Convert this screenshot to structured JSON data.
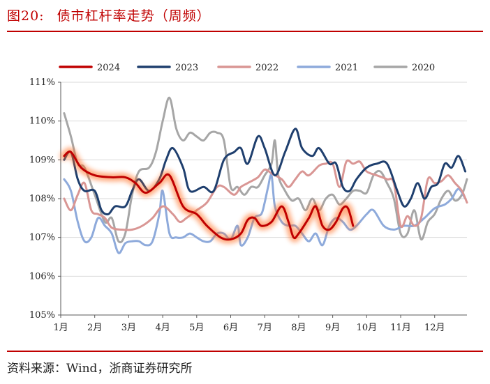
{
  "header": {
    "figure_number": "图20:",
    "figure_title": "债市杠杆率走势（周频）"
  },
  "footer": {
    "source": "资料来源：Wind，浙商证券研究所"
  },
  "chart_data": {
    "type": "line",
    "title": "债市杠杆率走势（周频）",
    "xlabel": "",
    "ylabel": "",
    "x_unit": "month",
    "xlim": [
      1,
      12.95
    ],
    "ylim": [
      105,
      111
    ],
    "x_ticks": [
      1,
      2,
      3,
      4,
      5,
      6,
      7,
      8,
      9,
      10,
      11,
      12
    ],
    "x_tick_labels": [
      "1月",
      "2月",
      "3月",
      "4月",
      "5月",
      "6月",
      "7月",
      "8月",
      "9月",
      "10月",
      "11月",
      "12月"
    ],
    "y_ticks": [
      105,
      106,
      107,
      108,
      109,
      110,
      111
    ],
    "y_tick_labels": [
      "105%",
      "106%",
      "107%",
      "108%",
      "109%",
      "110%",
      "111%"
    ],
    "grid": "horizontal",
    "legend_position": "top",
    "series": [
      {
        "name": "2024",
        "color": "#c00000",
        "highlight": true,
        "points": [
          [
            1.1,
            109.1
          ],
          [
            1.3,
            109.2
          ],
          [
            1.6,
            108.8
          ],
          [
            2.0,
            108.6
          ],
          [
            2.5,
            108.55
          ],
          [
            2.9,
            108.55
          ],
          [
            3.2,
            108.4
          ],
          [
            3.5,
            108.15
          ],
          [
            3.9,
            108.4
          ],
          [
            4.2,
            108.6
          ],
          [
            4.6,
            107.8
          ],
          [
            5.0,
            107.6
          ],
          [
            5.3,
            107.3
          ],
          [
            5.7,
            107.0
          ],
          [
            6.0,
            106.95
          ],
          [
            6.3,
            107.1
          ],
          [
            6.5,
            107.45
          ],
          [
            6.7,
            107.5
          ],
          [
            6.9,
            107.3
          ],
          [
            7.2,
            107.4
          ],
          [
            7.5,
            107.8
          ],
          [
            7.7,
            107.4
          ],
          [
            7.85,
            107.0
          ],
          [
            8.0,
            107.1
          ],
          [
            8.3,
            107.5
          ],
          [
            8.5,
            107.8
          ],
          [
            8.7,
            107.3
          ],
          [
            8.9,
            107.2
          ],
          [
            9.1,
            107.4
          ],
          [
            9.3,
            107.75
          ],
          [
            9.45,
            107.75
          ],
          [
            9.6,
            107.3
          ]
        ]
      },
      {
        "name": "2023",
        "color": "#1f3f6e",
        "highlight": false,
        "points": [
          [
            1.1,
            109.0
          ],
          [
            1.3,
            109.2
          ],
          [
            1.5,
            108.5
          ],
          [
            1.7,
            108.2
          ],
          [
            2.0,
            108.2
          ],
          [
            2.2,
            107.7
          ],
          [
            2.4,
            107.6
          ],
          [
            2.6,
            107.8
          ],
          [
            2.9,
            107.8
          ],
          [
            3.1,
            108.2
          ],
          [
            3.3,
            108.5
          ],
          [
            3.6,
            108.2
          ],
          [
            3.9,
            108.5
          ],
          [
            4.1,
            109.0
          ],
          [
            4.3,
            109.3
          ],
          [
            4.6,
            108.8
          ],
          [
            4.8,
            108.2
          ],
          [
            5.2,
            108.3
          ],
          [
            5.5,
            108.2
          ],
          [
            5.8,
            109.0
          ],
          [
            6.1,
            109.2
          ],
          [
            6.3,
            109.3
          ],
          [
            6.5,
            108.9
          ],
          [
            6.8,
            109.6
          ],
          [
            7.0,
            109.3
          ],
          [
            7.3,
            108.6
          ],
          [
            7.6,
            109.2
          ],
          [
            7.9,
            109.8
          ],
          [
            8.1,
            109.3
          ],
          [
            8.4,
            109.1
          ],
          [
            8.6,
            109.3
          ],
          [
            8.9,
            108.9
          ],
          [
            9.1,
            108.9
          ],
          [
            9.3,
            108.3
          ],
          [
            9.5,
            108.2
          ],
          [
            9.7,
            108.5
          ],
          [
            10.0,
            108.8
          ],
          [
            10.3,
            108.9
          ],
          [
            10.6,
            108.9
          ],
          [
            10.9,
            108.2
          ],
          [
            11.1,
            107.8
          ],
          [
            11.3,
            108.0
          ],
          [
            11.5,
            108.4
          ],
          [
            11.7,
            108.0
          ],
          [
            11.9,
            108.3
          ],
          [
            12.1,
            108.4
          ],
          [
            12.3,
            108.9
          ],
          [
            12.5,
            108.8
          ],
          [
            12.7,
            109.1
          ],
          [
            12.9,
            108.7
          ]
        ]
      },
      {
        "name": "2022",
        "color": "#d99694",
        "highlight": false,
        "points": [
          [
            1.1,
            108.0
          ],
          [
            1.3,
            107.7
          ],
          [
            1.5,
            108.1
          ],
          [
            1.7,
            108.4
          ],
          [
            1.9,
            107.7
          ],
          [
            2.1,
            107.6
          ],
          [
            2.3,
            107.5
          ],
          [
            2.5,
            107.25
          ],
          [
            2.8,
            107.2
          ],
          [
            3.1,
            107.2
          ],
          [
            3.4,
            107.3
          ],
          [
            3.7,
            107.5
          ],
          [
            4.0,
            107.8
          ],
          [
            4.3,
            107.6
          ],
          [
            4.5,
            107.4
          ],
          [
            4.7,
            107.5
          ],
          [
            5.0,
            107.7
          ],
          [
            5.3,
            107.9
          ],
          [
            5.6,
            108.3
          ],
          [
            5.8,
            108.3
          ],
          [
            6.1,
            108.1
          ],
          [
            6.3,
            108.3
          ],
          [
            6.5,
            108.4
          ],
          [
            6.8,
            108.55
          ],
          [
            7.0,
            108.75
          ],
          [
            7.2,
            108.65
          ],
          [
            7.5,
            108.5
          ],
          [
            7.7,
            108.3
          ],
          [
            7.9,
            108.5
          ],
          [
            8.1,
            108.7
          ],
          [
            8.3,
            108.6
          ],
          [
            8.6,
            108.85
          ],
          [
            8.8,
            108.9
          ],
          [
            9.0,
            108.9
          ],
          [
            9.2,
            108.3
          ],
          [
            9.4,
            108.95
          ],
          [
            9.6,
            108.9
          ],
          [
            9.8,
            108.95
          ],
          [
            10.0,
            108.7
          ],
          [
            10.3,
            108.6
          ],
          [
            10.6,
            108.5
          ],
          [
            10.8,
            108.4
          ],
          [
            11.0,
            107.3
          ],
          [
            11.2,
            107.55
          ],
          [
            11.4,
            107.3
          ],
          [
            11.6,
            107.5
          ],
          [
            11.8,
            108.5
          ],
          [
            12.0,
            108.4
          ],
          [
            12.2,
            108.45
          ],
          [
            12.4,
            108.6
          ],
          [
            12.6,
            108.4
          ],
          [
            12.8,
            108.2
          ],
          [
            12.95,
            107.9
          ]
        ]
      },
      {
        "name": "2021",
        "color": "#8eaadb",
        "highlight": false,
        "points": [
          [
            1.1,
            108.5
          ],
          [
            1.3,
            108.2
          ],
          [
            1.5,
            107.4
          ],
          [
            1.7,
            106.9
          ],
          [
            1.9,
            107.0
          ],
          [
            2.1,
            107.5
          ],
          [
            2.3,
            107.3
          ],
          [
            2.5,
            107.1
          ],
          [
            2.7,
            106.6
          ],
          [
            2.9,
            106.85
          ],
          [
            3.1,
            106.9
          ],
          [
            3.3,
            106.9
          ],
          [
            3.5,
            106.8
          ],
          [
            3.7,
            106.9
          ],
          [
            3.9,
            107.6
          ],
          [
            4.0,
            108.2
          ],
          [
            4.2,
            107.1
          ],
          [
            4.4,
            107.0
          ],
          [
            4.6,
            107.0
          ],
          [
            4.8,
            107.1
          ],
          [
            5.0,
            107.0
          ],
          [
            5.2,
            106.9
          ],
          [
            5.4,
            106.9
          ],
          [
            5.6,
            107.1
          ],
          [
            5.8,
            107.1
          ],
          [
            6.0,
            106.95
          ],
          [
            6.2,
            107.3
          ],
          [
            6.3,
            106.8
          ],
          [
            6.5,
            107.0
          ],
          [
            6.7,
            107.5
          ],
          [
            6.9,
            107.6
          ],
          [
            7.0,
            107.9
          ],
          [
            7.1,
            108.3
          ],
          [
            7.2,
            108.6
          ],
          [
            7.3,
            107.8
          ],
          [
            7.5,
            107.4
          ],
          [
            7.7,
            107.3
          ],
          [
            7.9,
            107.3
          ],
          [
            8.1,
            107.1
          ],
          [
            8.3,
            106.9
          ],
          [
            8.5,
            107.1
          ],
          [
            8.7,
            106.8
          ],
          [
            8.9,
            107.3
          ],
          [
            9.1,
            107.5
          ],
          [
            9.3,
            107.4
          ],
          [
            9.5,
            107.2
          ],
          [
            9.7,
            107.3
          ],
          [
            10.0,
            107.6
          ],
          [
            10.2,
            107.7
          ],
          [
            10.5,
            107.3
          ],
          [
            10.8,
            107.2
          ],
          [
            11.1,
            107.3
          ],
          [
            11.4,
            107.3
          ],
          [
            11.7,
            107.5
          ],
          [
            12.0,
            107.75
          ],
          [
            12.3,
            107.85
          ],
          [
            12.5,
            108.0
          ],
          [
            12.7,
            108.25
          ],
          [
            12.9,
            108.0
          ]
        ]
      },
      {
        "name": "2020",
        "color": "#a6a6a6",
        "highlight": false,
        "points": [
          [
            1.1,
            110.2
          ],
          [
            1.3,
            109.6
          ],
          [
            1.5,
            108.9
          ],
          [
            1.7,
            108.8
          ],
          [
            2.0,
            108.1
          ],
          [
            2.3,
            107.4
          ],
          [
            2.5,
            107.5
          ],
          [
            2.7,
            106.9
          ],
          [
            2.9,
            107.1
          ],
          [
            3.1,
            108.1
          ],
          [
            3.3,
            108.7
          ],
          [
            3.6,
            108.8
          ],
          [
            3.8,
            109.2
          ],
          [
            4.0,
            110.0
          ],
          [
            4.2,
            110.6
          ],
          [
            4.4,
            109.8
          ],
          [
            4.6,
            109.5
          ],
          [
            4.8,
            109.7
          ],
          [
            5.0,
            109.6
          ],
          [
            5.2,
            109.5
          ],
          [
            5.4,
            109.7
          ],
          [
            5.6,
            109.7
          ],
          [
            5.8,
            109.5
          ],
          [
            6.0,
            108.3
          ],
          [
            6.2,
            108.3
          ],
          [
            6.4,
            108.1
          ],
          [
            6.6,
            108.3
          ],
          [
            6.8,
            108.3
          ],
          [
            7.0,
            108.6
          ],
          [
            7.2,
            108.9
          ],
          [
            7.3,
            109.5
          ],
          [
            7.4,
            108.6
          ],
          [
            7.6,
            108.2
          ],
          [
            7.8,
            107.95
          ],
          [
            8.0,
            108.0
          ],
          [
            8.2,
            107.7
          ],
          [
            8.4,
            108.0
          ],
          [
            8.6,
            107.7
          ],
          [
            8.8,
            108.0
          ],
          [
            9.0,
            108.1
          ],
          [
            9.2,
            107.85
          ],
          [
            9.4,
            108.0
          ],
          [
            9.6,
            108.2
          ],
          [
            9.8,
            108.2
          ],
          [
            10.0,
            108.15
          ],
          [
            10.2,
            108.6
          ],
          [
            10.4,
            108.7
          ],
          [
            10.6,
            108.4
          ],
          [
            10.8,
            108.0
          ],
          [
            11.0,
            107.1
          ],
          [
            11.2,
            107.1
          ],
          [
            11.4,
            107.7
          ],
          [
            11.6,
            106.95
          ],
          [
            11.8,
            107.4
          ],
          [
            12.0,
            107.6
          ],
          [
            12.2,
            108.0
          ],
          [
            12.4,
            108.2
          ],
          [
            12.6,
            107.95
          ],
          [
            12.8,
            108.1
          ],
          [
            12.95,
            108.5
          ]
        ]
      }
    ]
  }
}
